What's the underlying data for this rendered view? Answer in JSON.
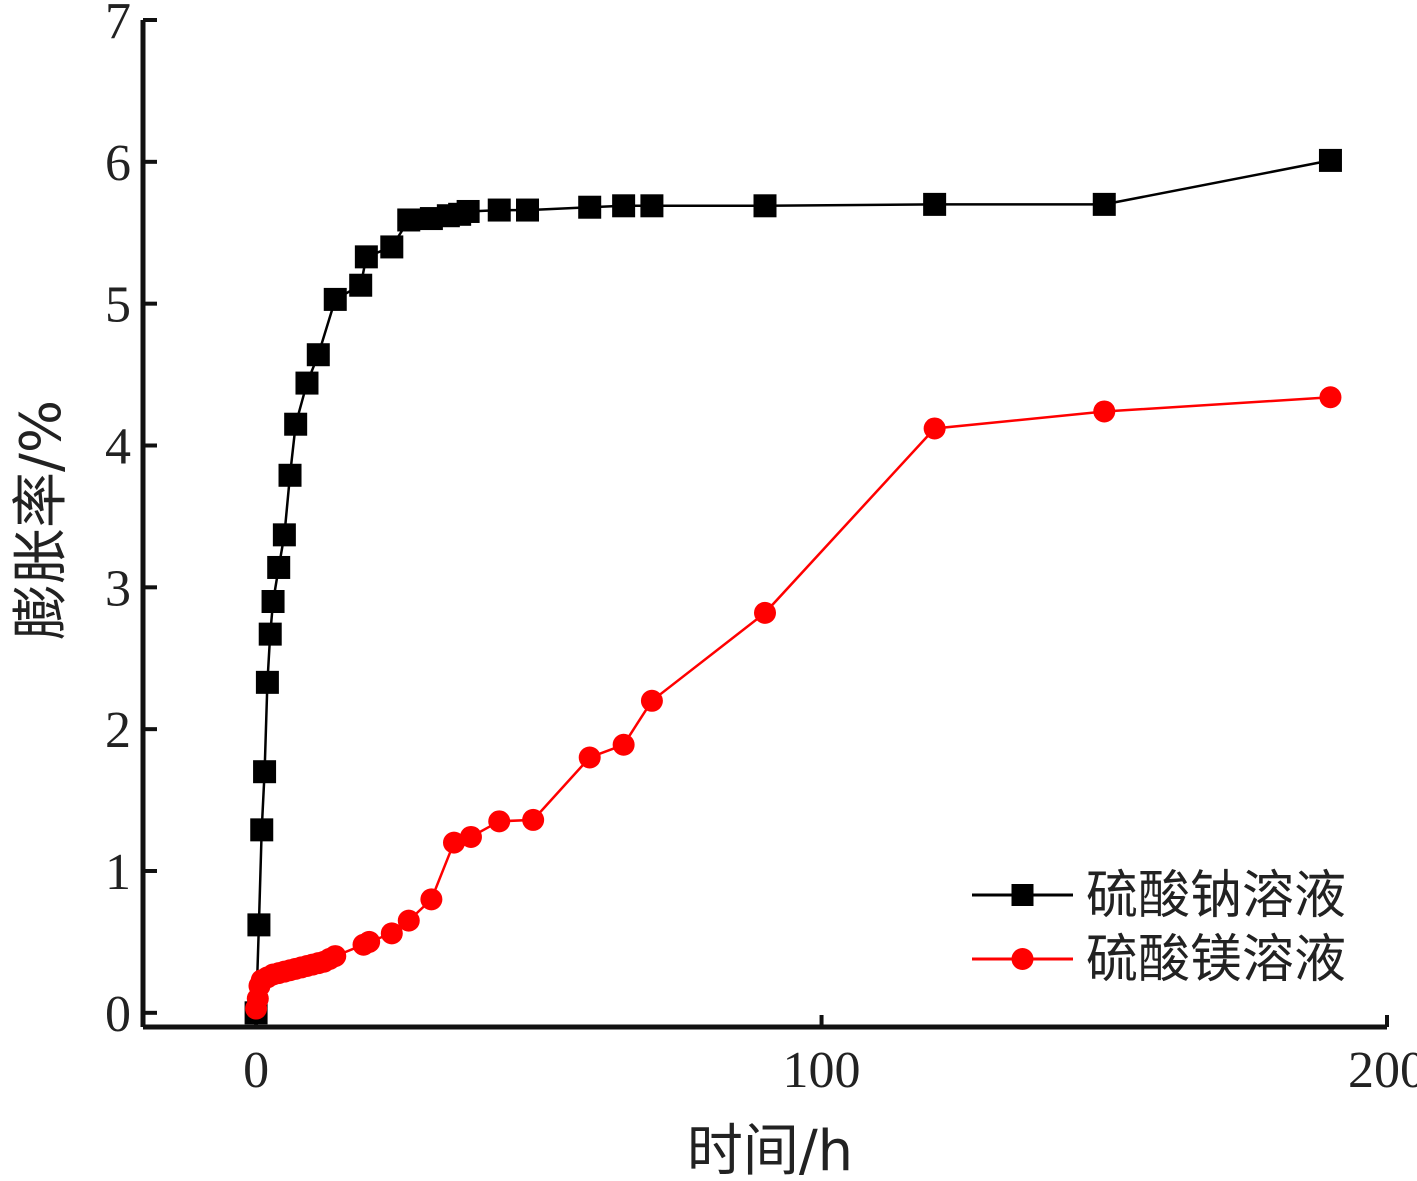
{
  "chart_data": {
    "type": "line",
    "xlabel": "时间/h",
    "ylabel": "膨胀率/%",
    "xlim": [
      -20,
      200
    ],
    "ylim": [
      -0.1,
      7
    ],
    "xticks": [
      0,
      100,
      200
    ],
    "yticks": [
      0,
      1,
      2,
      3,
      4,
      5,
      6,
      7
    ],
    "grid": false,
    "legend_position": "bottom-right",
    "series": [
      {
        "name": "硫酸钠溶液",
        "color": "#000000",
        "marker": "square",
        "x": [
          0,
          0.5,
          1,
          1.5,
          2,
          2.5,
          3,
          4,
          5,
          6,
          7,
          9,
          11,
          14,
          18.5,
          19.5,
          24,
          27,
          31,
          34,
          36,
          37.5,
          43,
          48,
          59,
          65,
          70,
          90,
          120,
          150,
          190
        ],
        "y": [
          0,
          0.62,
          1.29,
          1.7,
          2.33,
          2.67,
          2.9,
          3.14,
          3.37,
          3.79,
          4.15,
          4.44,
          4.64,
          5.03,
          5.13,
          5.33,
          5.4,
          5.59,
          5.6,
          5.62,
          5.63,
          5.65,
          5.66,
          5.66,
          5.68,
          5.69,
          5.69,
          5.69,
          5.7,
          5.7,
          6.01
        ]
      },
      {
        "name": "硫酸镁溶液",
        "color": "#ff0000",
        "marker": "circle",
        "x": [
          0,
          0.3,
          0.6,
          1,
          2,
          3,
          4,
          5,
          6,
          7,
          8,
          9,
          10,
          11,
          12,
          13,
          14,
          19,
          20,
          24,
          27,
          31,
          35,
          38,
          43,
          49,
          59,
          65,
          70,
          90,
          120,
          150,
          190
        ],
        "y": [
          0.03,
          0.1,
          0.19,
          0.23,
          0.25,
          0.27,
          0.28,
          0.29,
          0.3,
          0.31,
          0.32,
          0.33,
          0.34,
          0.35,
          0.36,
          0.38,
          0.4,
          0.48,
          0.5,
          0.56,
          0.65,
          0.8,
          1.2,
          1.24,
          1.35,
          1.36,
          1.8,
          1.89,
          2.2,
          2.82,
          4.12,
          4.24,
          4.34
        ]
      }
    ]
  }
}
